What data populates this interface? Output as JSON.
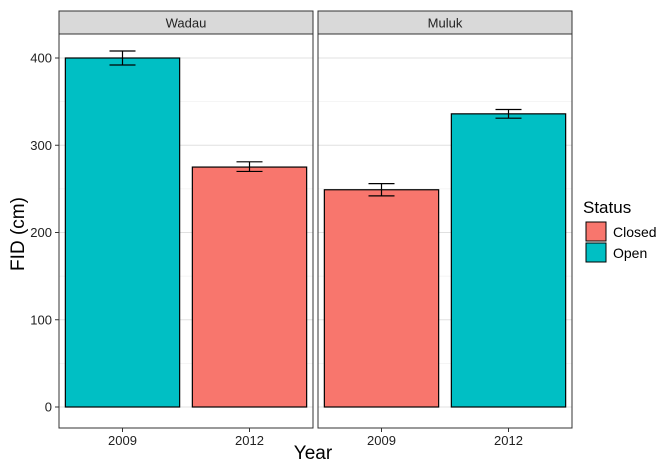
{
  "chart_data": {
    "type": "bar",
    "xlabel": "Year",
    "ylabel": "FID (cm)",
    "ylim": [
      0,
      420
    ],
    "yticks": [
      0,
      100,
      200,
      300,
      400
    ],
    "grid": true,
    "legend": {
      "title": "Status",
      "placement": "right",
      "entries": [
        {
          "label": "Closed",
          "color": "#F8766D"
        },
        {
          "label": "Open",
          "color": "#00BFC4"
        }
      ]
    },
    "panels": [
      {
        "name": "Wadau",
        "categories": [
          "2009",
          "2012"
        ],
        "bars": [
          {
            "x": "2009",
            "value": 400,
            "err_low": 392,
            "err_high": 408,
            "status": "Open"
          },
          {
            "x": "2012",
            "value": 275,
            "err_low": 270,
            "err_high": 281,
            "status": "Closed"
          }
        ]
      },
      {
        "name": "Muluk",
        "categories": [
          "2009",
          "2012"
        ],
        "bars": [
          {
            "x": "2009",
            "value": 249,
            "err_low": 242,
            "err_high": 256,
            "status": "Closed"
          },
          {
            "x": "2012",
            "value": 336,
            "err_low": 331,
            "err_high": 341,
            "status": "Open"
          }
        ]
      }
    ]
  }
}
